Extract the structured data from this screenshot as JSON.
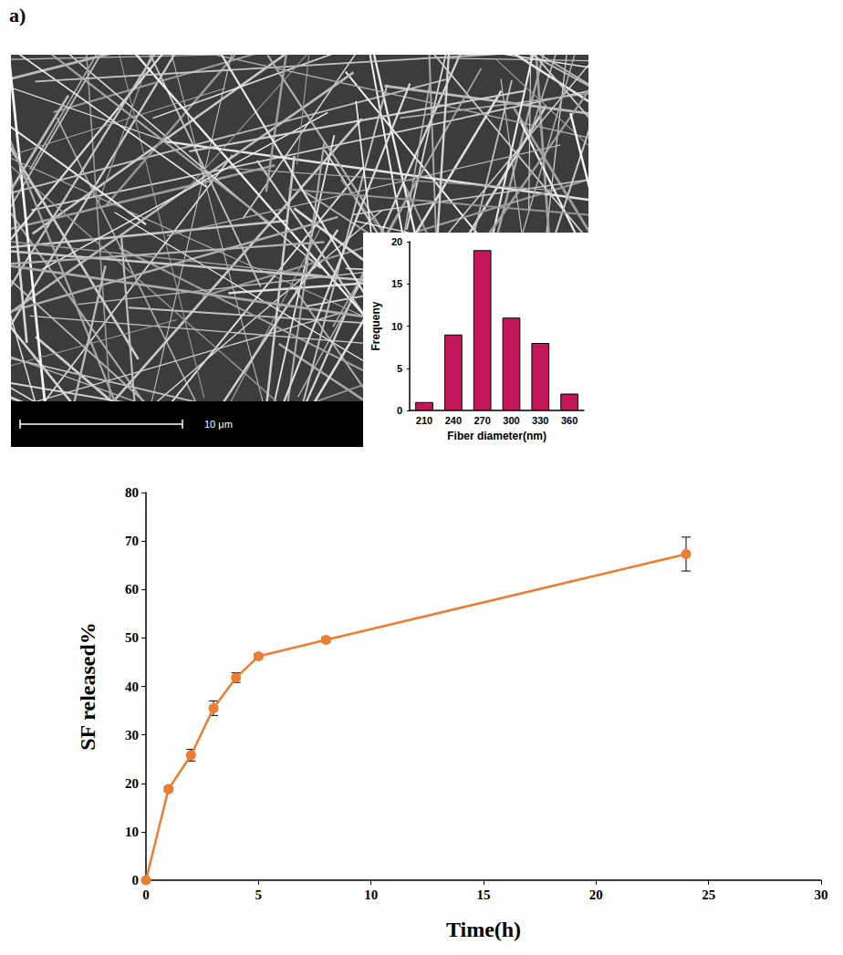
{
  "panel_label": "a)",
  "sem_image": {
    "scale_bar_label": "10 μm"
  },
  "chart_data": [
    {
      "type": "bar",
      "categories": [
        "210",
        "240",
        "270",
        "300",
        "330",
        "360"
      ],
      "values": [
        1,
        9,
        19,
        11,
        8,
        2
      ],
      "color": "#c2185b",
      "x_label": "Fiber diameter(nm)",
      "y_label": "Frequeny",
      "ylim": [
        0,
        20
      ],
      "yticks": [
        0,
        5,
        10,
        15,
        20
      ],
      "grid": false
    },
    {
      "type": "line",
      "x": [
        0,
        1,
        2,
        3,
        4,
        5,
        8,
        24
      ],
      "values": [
        0,
        18.8,
        25.8,
        35.5,
        41.8,
        46.2,
        49.6,
        67.3
      ],
      "errors": [
        0,
        0.5,
        1.2,
        1.5,
        1.0,
        0.5,
        0.5,
        3.5
      ],
      "color": "#ed7d31",
      "marker": "circle",
      "x_label": "Time(h)",
      "y_label": "SF released%",
      "xlim": [
        0,
        30
      ],
      "xticks": [
        0,
        5,
        10,
        15,
        20,
        25,
        30
      ],
      "ylim": [
        0,
        80
      ],
      "yticks": [
        0,
        10,
        20,
        30,
        40,
        50,
        60,
        70,
        80
      ],
      "grid": false
    }
  ]
}
